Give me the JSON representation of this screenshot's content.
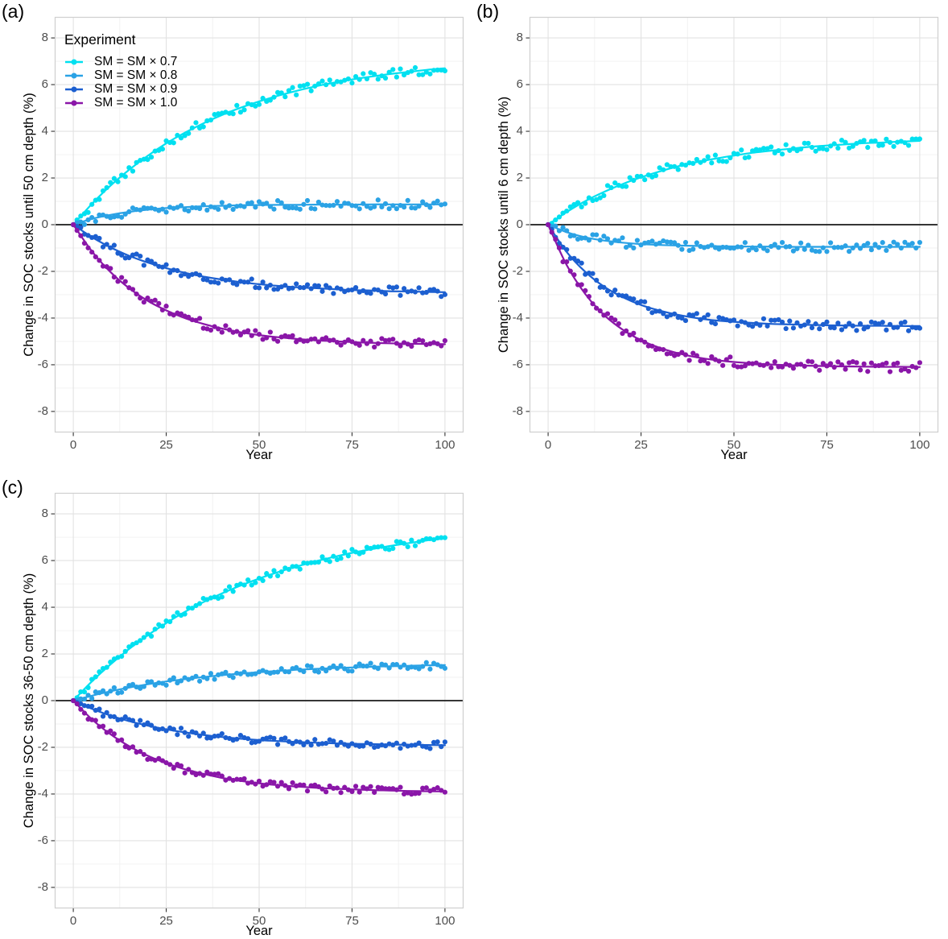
{
  "figure": {
    "panels": [
      {
        "label": "(a)",
        "y_axis_title": "Change in SOC stocks until 50 cm depth (%)",
        "x_axis_title": "Year"
      },
      {
        "label": "(b)",
        "y_axis_title": "Change in SOC stocks until 6 cm depth (%)",
        "x_axis_title": "Year"
      },
      {
        "label": "(c)",
        "y_axis_title": "Change in SOC stocks 36-50 cm depth (%)",
        "x_axis_title": "Year"
      }
    ],
    "legend": {
      "title": "Experiment",
      "entries": [
        {
          "label": "SM = SM × 0.7",
          "color": "#00E0F0"
        },
        {
          "label": "SM = SM × 0.8",
          "color": "#2AA2E5"
        },
        {
          "label": "SM = SM × 0.9",
          "color": "#1C5FD0"
        },
        {
          "label": "SM = SM × 1.0",
          "color": "#8A16A8"
        }
      ]
    },
    "style": {
      "grid_major_color": "#E2E2E2",
      "grid_minor_color": "#F0F0F0",
      "panel_border_color": "#CFCFCF",
      "zero_line_color": "#1A1A1A",
      "tick_mark_color": "#333333",
      "tick_label_color": "#4D4D4D",
      "background": "#FFFFFF"
    }
  },
  "chart_data": [
    {
      "type": "scatter",
      "mark": "points+smooth-line",
      "panel": "a",
      "title": "",
      "xlabel": "Year",
      "ylabel": "Change in SOC stocks until 50 cm depth (%)",
      "xlim": [
        -5,
        105
      ],
      "ylim": [
        -8.9,
        8.9
      ],
      "x_ticks": [
        0,
        25,
        50,
        75,
        100
      ],
      "y_ticks": [
        8,
        6,
        4,
        2,
        0,
        -2,
        -4,
        -6,
        -8
      ],
      "x_minor": [
        12.5,
        37.5,
        62.5,
        87.5
      ],
      "y_minor": [
        7,
        5,
        3,
        1,
        -1,
        -3,
        -5,
        -7
      ],
      "grid": "major+minor",
      "zero_line": 0,
      "legend_position": "inside-top-left",
      "x": [
        0,
        5,
        10,
        15,
        20,
        25,
        30,
        35,
        40,
        45,
        50,
        55,
        60,
        65,
        70,
        75,
        80,
        85,
        90,
        95,
        100
      ],
      "series": [
        {
          "name": "SM = SM × 0.7",
          "color": "#00E0F0",
          "seed": 11,
          "jitter": 0.12,
          "values": [
            0,
            0.89,
            1.67,
            2.35,
            2.95,
            3.48,
            3.94,
            4.34,
            4.7,
            5.01,
            5.28,
            5.52,
            5.73,
            5.92,
            6.08,
            6.22,
            6.34,
            6.45,
            6.54,
            6.63,
            6.7
          ]
        },
        {
          "name": "SM = SM × 0.8",
          "color": "#2AA2E5",
          "seed": 12,
          "jitter": 0.12,
          "values": [
            0,
            0.25,
            0.42,
            0.55,
            0.64,
            0.71,
            0.75,
            0.79,
            0.81,
            0.83,
            0.84,
            0.85,
            0.85,
            0.86,
            0.86,
            0.86,
            0.87,
            0.87,
            0.87,
            0.87,
            0.87
          ]
        },
        {
          "name": "SM = SM × 0.9",
          "color": "#1C5FD0",
          "seed": 13,
          "jitter": 0.12,
          "values": [
            0,
            -0.53,
            -0.97,
            -1.33,
            -1.62,
            -1.86,
            -2.06,
            -2.22,
            -2.35,
            -2.46,
            -2.55,
            -2.62,
            -2.68,
            -2.72,
            -2.76,
            -2.8,
            -2.82,
            -2.85,
            -2.86,
            -2.88,
            -2.89
          ]
        },
        {
          "name": "SM = SM × 1.0",
          "color": "#8A16A8",
          "seed": 14,
          "jitter": 0.12,
          "values": [
            0,
            -1.14,
            -2.03,
            -2.72,
            -3.26,
            -3.67,
            -4,
            -4.25,
            -4.45,
            -4.61,
            -4.73,
            -4.82,
            -4.89,
            -4.95,
            -4.99,
            -5.03,
            -5.06,
            -5.08,
            -5.1,
            -5.11,
            -5.12
          ]
        }
      ]
    },
    {
      "type": "scatter",
      "mark": "points+smooth-line",
      "panel": "b",
      "title": "",
      "xlabel": "Year",
      "ylabel": "Change in SOC stocks until 6 cm depth (%)",
      "xlim": [
        -5,
        105
      ],
      "ylim": [
        -8.9,
        8.9
      ],
      "x_ticks": [
        0,
        25,
        50,
        75,
        100
      ],
      "y_ticks": [
        8,
        6,
        4,
        2,
        0,
        -2,
        -4,
        -6,
        -8
      ],
      "x_minor": [
        12.5,
        37.5,
        62.5,
        87.5
      ],
      "y_minor": [
        7,
        5,
        3,
        1,
        -1,
        -3,
        -5,
        -7
      ],
      "grid": "major+minor",
      "zero_line": 0,
      "legend_position": "none",
      "x": [
        0,
        5,
        10,
        15,
        20,
        25,
        30,
        35,
        40,
        45,
        50,
        55,
        60,
        65,
        70,
        75,
        80,
        85,
        90,
        95,
        100
      ],
      "series": [
        {
          "name": "SM = SM × 0.7",
          "color": "#00E0F0",
          "seed": 21,
          "jitter": 0.13,
          "values": [
            0,
            0.54,
            1.01,
            1.4,
            1.74,
            2.03,
            2.28,
            2.5,
            2.68,
            2.83,
            2.96,
            3.08,
            3.17,
            3.25,
            3.33,
            3.39,
            3.44,
            3.49,
            3.52,
            3.56,
            3.59
          ]
        },
        {
          "name": "SM = SM × 0.8",
          "color": "#2AA2E5",
          "seed": 22,
          "jitter": 0.13,
          "values": [
            0,
            -0.32,
            -0.54,
            -0.68,
            -0.77,
            -0.83,
            -0.87,
            -0.89,
            -0.91,
            -0.92,
            -0.93,
            -0.94,
            -0.94,
            -0.95,
            -0.95,
            -0.95,
            -0.95,
            -0.95,
            -0.95,
            -0.95,
            -0.95
          ]
        },
        {
          "name": "SM = SM × 0.9",
          "color": "#1C5FD0",
          "seed": 23,
          "jitter": 0.13,
          "values": [
            0,
            -1.17,
            -2.02,
            -2.65,
            -3.1,
            -3.44,
            -3.68,
            -3.86,
            -4,
            -4.1,
            -4.16,
            -4.21,
            -4.25,
            -4.27,
            -4.29,
            -4.31,
            -4.32,
            -4.33,
            -4.33,
            -4.34,
            -4.34
          ]
        },
        {
          "name": "SM = SM × 1.0",
          "color": "#8A16A8",
          "seed": 24,
          "jitter": 0.13,
          "values": [
            0,
            -1.73,
            -2.97,
            -3.86,
            -4.49,
            -4.95,
            -5.27,
            -5.51,
            -5.68,
            -5.8,
            -5.88,
            -5.94,
            -5.99,
            -6.02,
            -6.04,
            -6.06,
            -6.07,
            -6.08,
            -6.09,
            -6.09,
            -6.1
          ]
        }
      ]
    },
    {
      "type": "scatter",
      "mark": "points+smooth-line",
      "panel": "c",
      "title": "",
      "xlabel": "Year",
      "ylabel": "Change in SOC stocks 36-50 cm depth (%)",
      "xlim": [
        -5,
        105
      ],
      "ylim": [
        -8.9,
        8.9
      ],
      "x_ticks": [
        0,
        25,
        50,
        75,
        100
      ],
      "y_ticks": [
        8,
        6,
        4,
        2,
        0,
        -2,
        -4,
        -6,
        -8
      ],
      "x_minor": [
        12.5,
        37.5,
        62.5,
        87.5
      ],
      "y_minor": [
        7,
        5,
        3,
        1,
        -1,
        -3,
        -5,
        -7
      ],
      "grid": "major+minor",
      "zero_line": 0,
      "legend_position": "none",
      "x": [
        0,
        5,
        10,
        15,
        20,
        25,
        30,
        35,
        40,
        45,
        50,
        55,
        60,
        65,
        70,
        75,
        80,
        85,
        90,
        95,
        100
      ],
      "series": [
        {
          "name": "SM = SM × 0.7",
          "color": "#00E0F0",
          "seed": 31,
          "jitter": 0.1,
          "values": [
            0,
            0.82,
            1.55,
            2.21,
            2.8,
            3.32,
            3.8,
            4.22,
            4.59,
            4.93,
            5.23,
            5.5,
            5.74,
            5.96,
            6.15,
            6.33,
            6.48,
            6.62,
            6.74,
            6.86,
            6.95
          ]
        },
        {
          "name": "SM = SM × 0.8",
          "color": "#2AA2E5",
          "seed": 32,
          "jitter": 0.1,
          "values": [
            0,
            0.21,
            0.4,
            0.56,
            0.7,
            0.82,
            0.92,
            1.01,
            1.09,
            1.16,
            1.22,
            1.27,
            1.32,
            1.36,
            1.39,
            1.42,
            1.45,
            1.47,
            1.49,
            1.51,
            1.52
          ]
        },
        {
          "name": "SM = SM × 0.9",
          "color": "#1C5FD0",
          "seed": 33,
          "jitter": 0.1,
          "values": [
            0,
            -0.35,
            -0.64,
            -0.88,
            -1.07,
            -1.23,
            -1.36,
            -1.47,
            -1.56,
            -1.63,
            -1.69,
            -1.73,
            -1.77,
            -1.8,
            -1.83,
            -1.85,
            -1.86,
            -1.88,
            -1.89,
            -1.9,
            -1.91
          ]
        },
        {
          "name": "SM = SM × 1.0",
          "color": "#8A16A8",
          "seed": 34,
          "jitter": 0.1,
          "values": [
            0,
            -0.8,
            -1.44,
            -1.95,
            -2.36,
            -2.68,
            -2.94,
            -3.14,
            -3.31,
            -3.44,
            -3.54,
            -3.62,
            -3.68,
            -3.73,
            -3.77,
            -3.8,
            -3.83,
            -3.85,
            -3.87,
            -3.88,
            -3.89
          ]
        }
      ]
    }
  ]
}
